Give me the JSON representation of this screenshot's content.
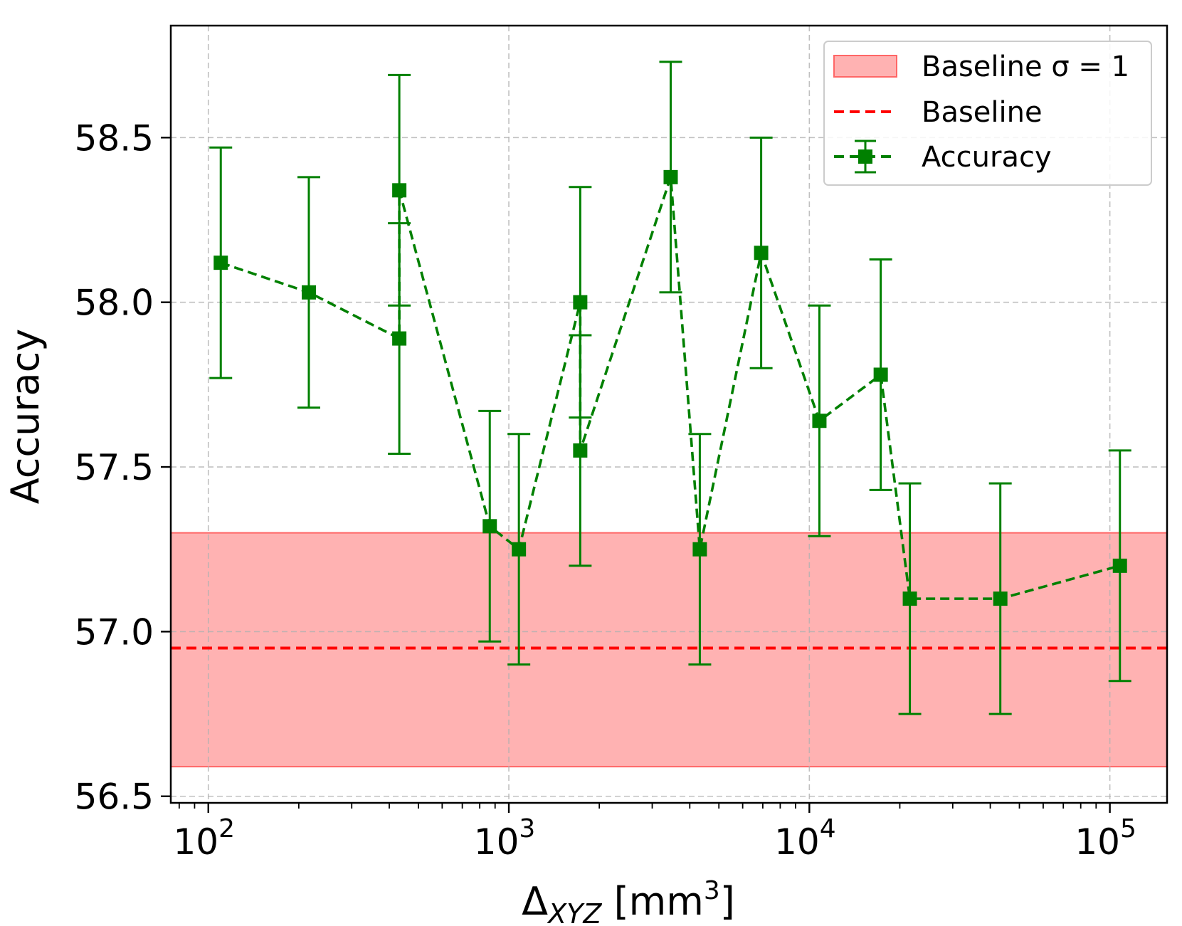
{
  "chart_data": {
    "type": "scatter",
    "title": "",
    "xlabel": {
      "base": "Δ",
      "subscript": "XYZ",
      "unit_open": " [mm",
      "unit_sup": "3",
      "unit_close": "]"
    },
    "ylabel": "Accuracy",
    "xscale": "log",
    "xlim": [
      75,
      155000
    ],
    "ylim": [
      56.48,
      58.84
    ],
    "grid": true,
    "x_ticks": [
      {
        "value": 100,
        "base": "10",
        "exp": "2"
      },
      {
        "value": 1000,
        "base": "10",
        "exp": "3"
      },
      {
        "value": 10000,
        "base": "10",
        "exp": "4"
      },
      {
        "value": 100000,
        "base": "10",
        "exp": "5"
      }
    ],
    "y_ticks": [
      {
        "value": 56.5,
        "label": "56.5"
      },
      {
        "value": 57.0,
        "label": "57.0"
      },
      {
        "value": 57.5,
        "label": "57.5"
      },
      {
        "value": 58.0,
        "label": "58.0"
      },
      {
        "value": 58.5,
        "label": "58.5"
      }
    ],
    "baseline": {
      "name": "Baseline",
      "value": 56.95,
      "color": "#ff0000"
    },
    "baseline_band": {
      "name": "Baseline σ = 1",
      "label_prefix": "Baseline ",
      "label_sigma": "σ = 1",
      "lower": 56.59,
      "upper": 57.3,
      "color": "#ff6666"
    },
    "series": [
      {
        "name": "Accuracy",
        "color": "#008000",
        "marker": "square",
        "linestyle": "dashed",
        "x": [
          110,
          216,
          432,
          432,
          864,
          1080,
          1728,
          1728,
          3456,
          4320,
          6912,
          10800,
          17280,
          21600,
          43200,
          108000
        ],
        "y": [
          58.12,
          58.03,
          57.89,
          58.34,
          57.32,
          57.25,
          58.0,
          57.55,
          58.38,
          57.25,
          58.15,
          57.64,
          57.78,
          57.1,
          57.1,
          57.2
        ],
        "yerr": [
          0.35,
          0.35,
          0.35,
          0.35,
          0.35,
          0.35,
          0.35,
          0.35,
          0.35,
          0.35,
          0.35,
          0.35,
          0.35,
          0.35,
          0.35,
          0.35
        ]
      }
    ],
    "legend": {
      "position": "top-right",
      "entries": [
        {
          "label_key": "baseline_band"
        },
        {
          "label_key": "baseline"
        },
        {
          "label_key": "series0"
        }
      ]
    }
  }
}
